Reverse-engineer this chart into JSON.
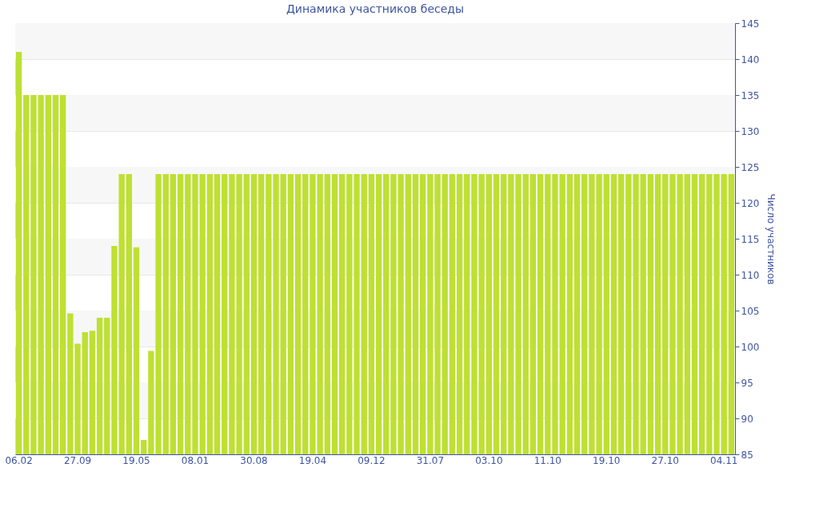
{
  "chart_data": {
    "type": "bar",
    "title": "Динамика участников беседы",
    "ylabel": "Число участников",
    "categories": [
      "06.02",
      null,
      null,
      null,
      null,
      null,
      null,
      null,
      "27.09",
      null,
      null,
      null,
      null,
      null,
      null,
      null,
      "19.05",
      null,
      null,
      null,
      null,
      null,
      null,
      null,
      "08.01",
      null,
      null,
      null,
      null,
      null,
      null,
      null,
      "30.08",
      null,
      null,
      null,
      null,
      null,
      null,
      null,
      "19.04",
      null,
      null,
      null,
      null,
      null,
      null,
      null,
      "09.12",
      null,
      null,
      null,
      null,
      null,
      null,
      null,
      "31.07",
      null,
      null,
      null,
      null,
      null,
      null,
      null,
      "03.10",
      null,
      null,
      null,
      null,
      null,
      null,
      null,
      "11.10",
      null,
      null,
      null,
      null,
      null,
      null,
      null,
      "19.10",
      null,
      null,
      null,
      null,
      null,
      null,
      null,
      "27.10",
      null,
      null,
      null,
      null,
      null,
      null,
      null,
      "04.11",
      null
    ],
    "values": [
      141,
      135,
      135,
      135,
      135,
      135,
      135,
      104.6,
      100.4,
      102,
      102.2,
      104,
      104,
      114,
      124,
      124,
      113.8,
      87,
      99.4,
      124,
      124,
      124,
      124,
      124,
      124,
      124,
      124,
      124,
      124,
      124,
      124,
      124,
      124,
      124,
      124,
      124,
      124,
      124,
      124,
      124,
      124,
      124,
      124,
      124,
      124,
      124,
      124,
      124,
      124,
      124,
      124,
      124,
      124,
      124,
      124,
      124,
      124,
      124,
      124,
      124,
      124,
      124,
      124,
      124,
      124,
      124,
      124,
      124,
      124,
      124,
      124,
      124,
      124,
      124,
      124,
      124,
      124,
      124,
      124,
      124,
      124,
      124,
      124,
      124,
      124,
      124,
      124,
      124,
      124,
      124,
      124,
      124,
      124,
      124,
      124,
      124,
      124,
      124
    ],
    "color": "#bee032",
    "ylim": [
      85,
      145
    ],
    "yticks": [
      85,
      90,
      95,
      100,
      105,
      110,
      115,
      120,
      125,
      130,
      135,
      140,
      145
    ],
    "grid": "y"
  }
}
